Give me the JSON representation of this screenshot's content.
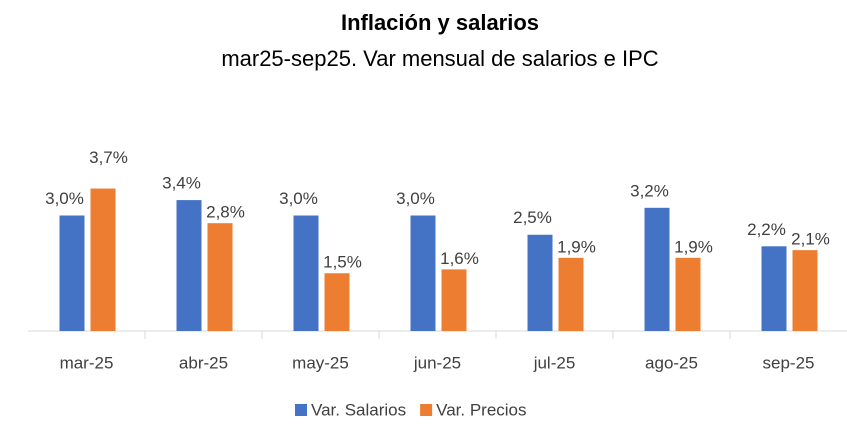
{
  "chart_data": {
    "type": "bar",
    "title": "Inflación y salarios",
    "subtitle": "mar25-sep25. Var mensual de salarios e IPC",
    "categories": [
      "mar-25",
      "abr-25",
      "may-25",
      "jun-25",
      "jul-25",
      "ago-25",
      "sep-25"
    ],
    "series": [
      {
        "name": "Var. Salarios",
        "color": "#4472c4",
        "values": [
          3.0,
          3.4,
          3.0,
          3.0,
          2.5,
          3.2,
          2.2
        ],
        "value_labels": [
          "3,0%",
          "3,4%",
          "3,0%",
          "3,0%",
          "2,5%",
          "3,2%",
          "2,2%"
        ]
      },
      {
        "name": "Var. Precios",
        "color": "#ed7d31",
        "values": [
          3.7,
          2.8,
          1.5,
          1.6,
          1.9,
          1.9,
          2.1
        ],
        "value_labels": [
          "3,7%",
          "2,8%",
          "1,5%",
          "1,6%",
          "1,9%",
          "1,9%",
          "2,1%"
        ]
      }
    ],
    "ylim": [
      0,
      4
    ],
    "legend": "bottom"
  }
}
